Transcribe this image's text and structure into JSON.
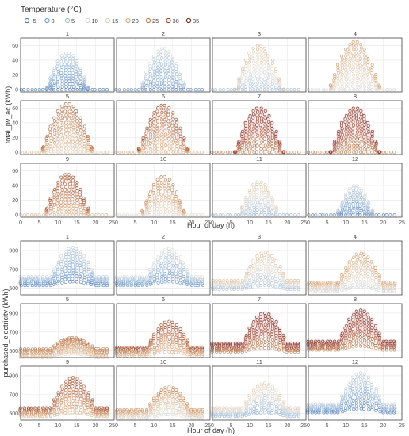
{
  "colors": {
    "cold": "#4a78b8",
    "cool": "#8fb3d9",
    "neutral": "#e6e0d6",
    "warm": "#d9a679",
    "hot": "#a8582b",
    "hottest": "#6e2a12",
    "glow": "#f4b6c8",
    "grid": "#e8e8e8",
    "frame": "#444444"
  },
  "legend": {
    "title": "Temperature (°C)",
    "entries": [
      "-5",
      "0",
      "5",
      "10",
      "15",
      "20",
      "25",
      "30",
      "35"
    ]
  },
  "chart_data": [
    {
      "type": "scatter",
      "id": "pv",
      "ylabel": "total_pv_ac (kWh)",
      "xlabel": "Hour of day (h)",
      "xlim": [
        0,
        25
      ],
      "ylim": [
        -3,
        70
      ],
      "x_ticks": [
        "0",
        "5",
        "10",
        "15",
        "20",
        "25"
      ],
      "y_ticks": [
        0,
        20,
        40,
        60
      ],
      "grid": true,
      "facets": [
        {
          "month": "1",
          "peak": 50,
          "temp": 1
        },
        {
          "month": "2",
          "peak": 56,
          "temp": 3
        },
        {
          "month": "3",
          "peak": 60,
          "temp": 11
        },
        {
          "month": "4",
          "peak": 65,
          "temp": 16
        },
        {
          "month": "5",
          "peak": 66,
          "temp": 22
        },
        {
          "month": "6",
          "peak": 64,
          "temp": 24
        },
        {
          "month": "7",
          "peak": 60,
          "temp": 30
        },
        {
          "month": "8",
          "peak": 60,
          "temp": 30
        },
        {
          "month": "9",
          "peak": 55,
          "temp": 24
        },
        {
          "month": "10",
          "peak": 52,
          "temp": 18
        },
        {
          "month": "11",
          "peak": 45,
          "temp": 10
        },
        {
          "month": "12",
          "peak": 40,
          "temp": 3
        }
      ]
    },
    {
      "type": "scatter",
      "id": "purchased",
      "ylabel": "purchased_electricity (kWh)",
      "xlabel": "Hour of day (h)",
      "xlim": [
        0,
        25
      ],
      "ylim": [
        430,
        1000
      ],
      "x_ticks": [
        "0",
        "5",
        "10",
        "15",
        "20",
        "25"
      ],
      "y_ticks": [
        500,
        700,
        900
      ],
      "grid": true,
      "facets": [
        {
          "month": "1",
          "base": 620,
          "peak": 930,
          "temp": 2
        },
        {
          "month": "2",
          "base": 620,
          "peak": 920,
          "temp": 4
        },
        {
          "month": "3",
          "base": 580,
          "peak": 880,
          "temp": 11
        },
        {
          "month": "4",
          "base": 560,
          "peak": 870,
          "temp": 15
        },
        {
          "month": "5",
          "base": 520,
          "peak": 640,
          "temp": 20
        },
        {
          "month": "6",
          "base": 540,
          "peak": 810,
          "temp": 24
        },
        {
          "month": "7",
          "base": 580,
          "peak": 900,
          "temp": 30
        },
        {
          "month": "8",
          "base": 600,
          "peak": 930,
          "temp": 30
        },
        {
          "month": "9",
          "base": 560,
          "peak": 880,
          "temp": 24
        },
        {
          "month": "10",
          "base": 540,
          "peak": 780,
          "temp": 17
        },
        {
          "month": "11",
          "base": 560,
          "peak": 820,
          "temp": 9
        },
        {
          "month": "12",
          "base": 600,
          "peak": 930,
          "temp": 2
        }
      ]
    }
  ]
}
